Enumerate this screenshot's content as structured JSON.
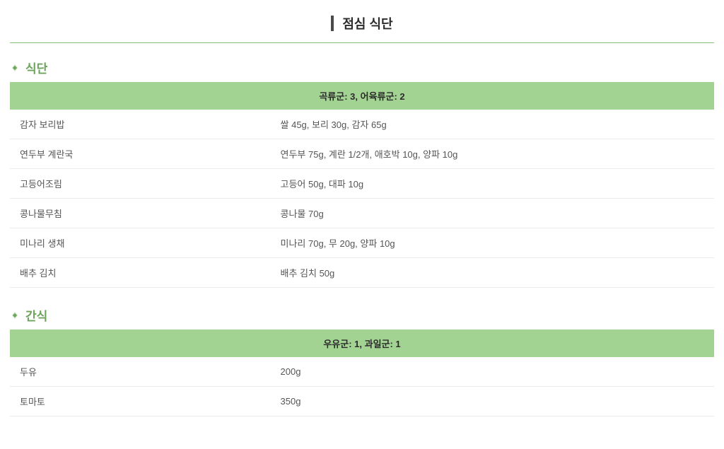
{
  "page_title": "점심 식단",
  "colors": {
    "accent_green": "#6ba45a",
    "header_row_bg": "#a3d393",
    "divider": "#88c07a",
    "row_border": "#eceae7",
    "text_dark": "#2b2b2b",
    "text_body": "#555555"
  },
  "sections": [
    {
      "title": "식단",
      "header_label": "곡류군: 3, 어육류군: 2",
      "rows": [
        {
          "name": "감자 보리밥",
          "detail": "쌀 45g, 보리 30g, 감자 65g"
        },
        {
          "name": "연두부 계란국",
          "detail": "연두부 75g, 계란 1/2개, 애호박 10g, 양파 10g"
        },
        {
          "name": "고등어조림",
          "detail": "고등어 50g, 대파 10g"
        },
        {
          "name": "콩나물무침",
          "detail": "콩나물 70g"
        },
        {
          "name": "미나리 생채",
          "detail": "미나리 70g, 무 20g, 양파 10g"
        },
        {
          "name": "배추 김치",
          "detail": "배추 김치 50g"
        }
      ]
    },
    {
      "title": "간식",
      "header_label": "우유군: 1, 과일군: 1",
      "rows": [
        {
          "name": "두유",
          "detail": "200g"
        },
        {
          "name": "토마토",
          "detail": "350g"
        }
      ]
    }
  ]
}
